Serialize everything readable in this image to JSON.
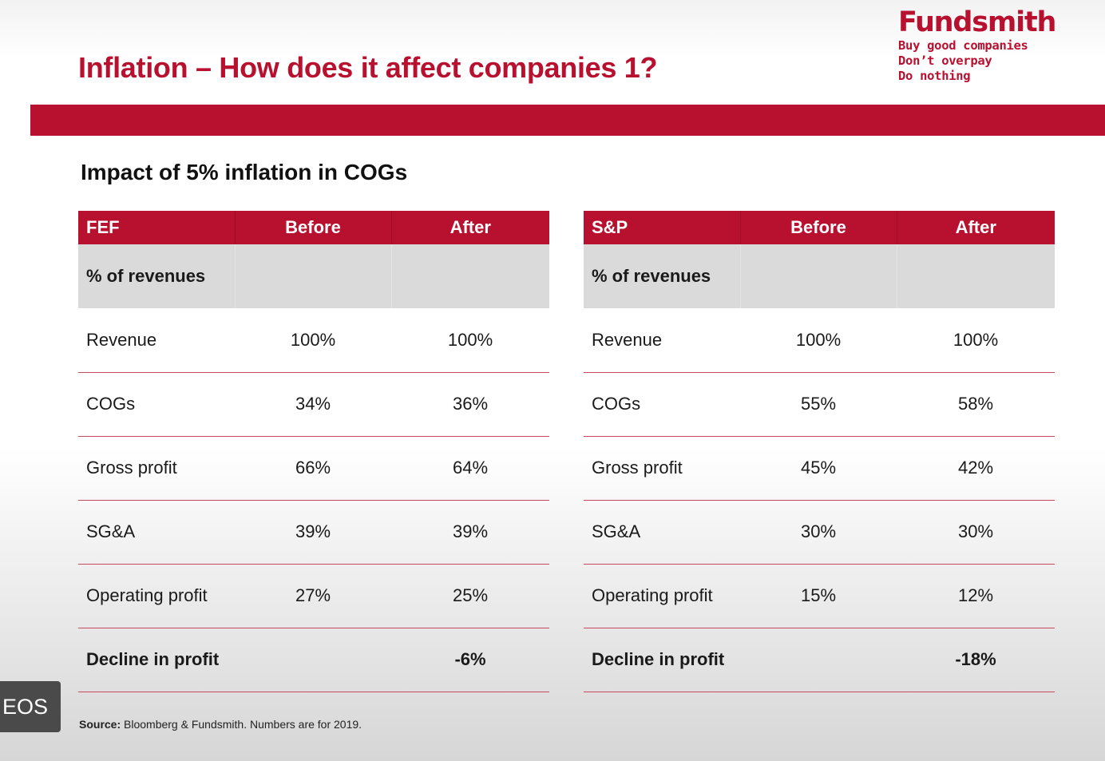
{
  "slide": {
    "title": "Inflation – How does it affect companies 1?",
    "subtitle": "Impact of 5% inflation in COGs"
  },
  "logo": {
    "name": "Fundsmith",
    "tagline": [
      "Buy good companies",
      "Don’t overpay",
      "Do nothing"
    ]
  },
  "tables": [
    {
      "headers": [
        "FEF",
        "Before",
        "After"
      ],
      "band_label": "% of revenues",
      "rows": [
        [
          "Revenue",
          "100%",
          "100%"
        ],
        [
          "COGs",
          "34%",
          "36%"
        ],
        [
          "Gross profit",
          "66%",
          "64%"
        ],
        [
          "SG&A",
          "39%",
          "39%"
        ],
        [
          "Operating profit",
          "27%",
          "25%"
        ],
        [
          "Decline in profit",
          "",
          "-6%"
        ]
      ]
    },
    {
      "headers": [
        "S&P",
        "Before",
        "After"
      ],
      "band_label": "% of revenues",
      "rows": [
        [
          "Revenue",
          "100%",
          "100%"
        ],
        [
          "COGs",
          "55%",
          "58%"
        ],
        [
          "Gross profit",
          "45%",
          "42%"
        ],
        [
          "SG&A",
          "30%",
          "30%"
        ],
        [
          "Operating profit",
          "15%",
          "12%"
        ],
        [
          "Decline in profit",
          "",
          "-18%"
        ]
      ]
    }
  ],
  "source": {
    "label": "Source:",
    "text": " Bloomberg & Fundsmith. Numbers are for 2019."
  },
  "overlay": {
    "badge_text": "EOS"
  },
  "colors": {
    "brand_red": "#b8102f",
    "band_gray": "#dadada"
  }
}
